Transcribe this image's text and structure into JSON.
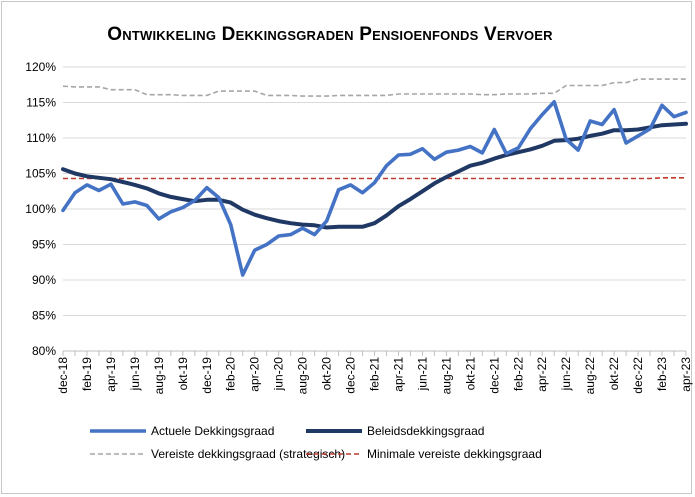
{
  "chart_data": {
    "type": "line",
    "title": "Ontwikkeling Dekkingsgraden Pensioenfonds Vervoer",
    "ylim": [
      80,
      120
    ],
    "yticks": [
      "80%",
      "85%",
      "90%",
      "95%",
      "100%",
      "105%",
      "110%",
      "115%",
      "120%"
    ],
    "grid": true,
    "legend": "bottom",
    "x_labels": [
      "dec-18",
      "feb-19",
      "apr-19",
      "jun-19",
      "aug-19",
      "okt-19",
      "dec-19",
      "feb-20",
      "apr-20",
      "jun-20",
      "aug-20",
      "okt-20",
      "dec-20",
      "feb-21",
      "apr-21",
      "jun-21",
      "aug-21",
      "okt-21",
      "dec-21",
      "feb-22",
      "apr-22",
      "jun-22",
      "aug-22",
      "okt-22",
      "dec-22",
      "feb-23",
      "apr-23"
    ],
    "x_months": [
      "dec-18",
      "jan-19",
      "feb-19",
      "mrt-19",
      "apr-19",
      "mei-19",
      "jun-19",
      "jul-19",
      "aug-19",
      "sep-19",
      "okt-19",
      "nov-19",
      "dec-19",
      "jan-20",
      "feb-20",
      "mrt-20",
      "apr-20",
      "mei-20",
      "jun-20",
      "jul-20",
      "aug-20",
      "sep-20",
      "okt-20",
      "nov-20",
      "dec-20",
      "jan-21",
      "feb-21",
      "mrt-21",
      "apr-21",
      "mei-21",
      "jun-21",
      "jul-21",
      "aug-21",
      "sep-21",
      "okt-21",
      "nov-21",
      "dec-21",
      "jan-22",
      "feb-22",
      "mrt-22",
      "apr-22",
      "mei-22",
      "jun-22",
      "jul-22",
      "aug-22",
      "sep-22",
      "okt-22",
      "nov-22",
      "dec-22",
      "jan-23",
      "feb-23",
      "mrt-23",
      "apr-23"
    ],
    "series": [
      {
        "name": "Actuele Dekkingsgraad",
        "color": "#4472c4",
        "style": "solid",
        "values": [
          99.8,
          102.3,
          103.4,
          102.6,
          103.5,
          100.7,
          101.0,
          100.5,
          98.6,
          99.6,
          100.2,
          101.2,
          103.0,
          101.6,
          97.8,
          90.7,
          94.2,
          95.0,
          96.2,
          96.4,
          97.3,
          96.4,
          98.3,
          102.7,
          103.4,
          102.3,
          103.7,
          106.1,
          107.6,
          107.7,
          108.5,
          107.0,
          108.0,
          108.3,
          108.8,
          107.9,
          111.2,
          107.8,
          108.6,
          111.3,
          113.3,
          115.1,
          109.8,
          108.3,
          112.4,
          111.9,
          114.0,
          109.3,
          110.3,
          111.3,
          114.6,
          113.0,
          113.6
        ]
      },
      {
        "name": "Beleidsdekkingsgraad",
        "color": "#1f3864",
        "style": "solid",
        "values": [
          105.6,
          105.0,
          104.6,
          104.4,
          104.2,
          103.8,
          103.4,
          102.9,
          102.2,
          101.7,
          101.4,
          101.1,
          101.3,
          101.3,
          100.9,
          99.9,
          99.2,
          98.7,
          98.3,
          98.0,
          97.8,
          97.7,
          97.4,
          97.5,
          97.5,
          97.5,
          98.0,
          99.1,
          100.4,
          101.4,
          102.5,
          103.6,
          104.5,
          105.3,
          106.1,
          106.5,
          107.1,
          107.6,
          108.0,
          108.4,
          108.9,
          109.6,
          109.7,
          109.9,
          110.3,
          110.6,
          111.1,
          111.1,
          111.2,
          111.5,
          111.8,
          111.9,
          112.0
        ]
      },
      {
        "name": "Vereiste dekkingsgraad (strategisch)",
        "color": "#a6a6a6",
        "style": "dashed",
        "values": [
          117.3,
          117.2,
          117.2,
          117.2,
          116.8,
          116.8,
          116.8,
          116.1,
          116.1,
          116.1,
          116.0,
          116.0,
          116.0,
          116.6,
          116.6,
          116.6,
          116.6,
          116.0,
          116.0,
          116.0,
          115.9,
          115.9,
          115.9,
          116.0,
          116.0,
          116.0,
          116.0,
          116.0,
          116.2,
          116.2,
          116.2,
          116.2,
          116.2,
          116.2,
          116.2,
          116.1,
          116.1,
          116.2,
          116.2,
          116.2,
          116.3,
          116.3,
          117.4,
          117.4,
          117.4,
          117.4,
          117.8,
          117.8,
          118.3,
          118.3,
          118.3,
          118.3,
          118.3
        ]
      },
      {
        "name": "Minimale vereiste dekkingsgraad",
        "color": "#c0392b",
        "style": "dashed",
        "values": [
          104.3,
          104.3,
          104.3,
          104.3,
          104.3,
          104.3,
          104.3,
          104.3,
          104.3,
          104.3,
          104.3,
          104.3,
          104.3,
          104.3,
          104.3,
          104.3,
          104.3,
          104.3,
          104.3,
          104.3,
          104.3,
          104.3,
          104.3,
          104.3,
          104.3,
          104.3,
          104.3,
          104.3,
          104.3,
          104.3,
          104.3,
          104.3,
          104.3,
          104.3,
          104.3,
          104.3,
          104.3,
          104.3,
          104.3,
          104.3,
          104.3,
          104.3,
          104.3,
          104.3,
          104.3,
          104.3,
          104.3,
          104.3,
          104.3,
          104.3,
          104.4,
          104.4,
          104.4
        ]
      }
    ]
  }
}
